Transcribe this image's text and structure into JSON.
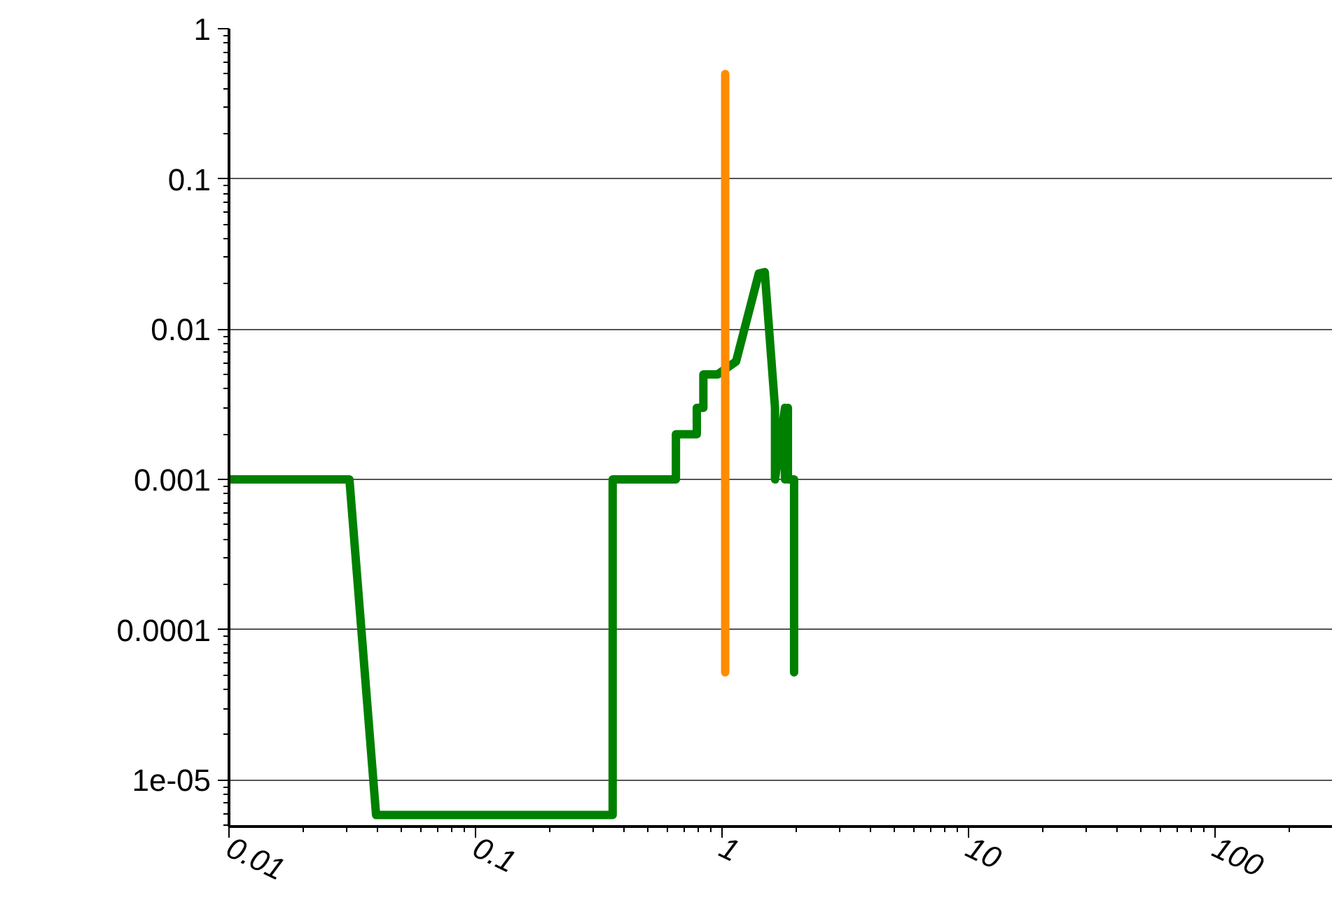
{
  "chart_data": {
    "type": "line",
    "log": "xy",
    "grid": "y",
    "marker": "none",
    "line_style": "solid",
    "xlim": [
      0.01,
      300
    ],
    "ylim": [
      4.9e-06,
      1
    ],
    "xticks": [
      0.01,
      0.1,
      1,
      10,
      100
    ],
    "yticks": [
      1,
      0.1,
      0.01,
      0.001,
      0.0001,
      {
        "value": 1e-05,
        "label": "1e-05"
      }
    ],
    "series": [
      {
        "color": "#008000",
        "x": [
          0.01,
          0.0308,
          0.0395,
          0.36,
          0.36,
          0.65,
          0.65,
          0.79,
          0.79,
          0.84,
          0.84,
          0.96,
          1.14,
          1.41,
          1.49,
          1.64,
          1.64,
          1.8,
          1.8,
          1.85,
          1.85,
          1.96,
          1.96
        ],
        "values": [
          0.001,
          0.001,
          5.85e-06,
          5.85e-06,
          0.001,
          0.001,
          0.002,
          0.002,
          0.003,
          0.003,
          0.005,
          0.005,
          0.0061,
          0.0235,
          0.024,
          0.003,
          0.001,
          0.003,
          0.001,
          0.003,
          0.001,
          0.001,
          5.2e-05
        ]
      },
      {
        "color": "#ff8c00",
        "x": [
          1.03,
          1.03
        ],
        "values": [
          0.5,
          5.2e-05
        ]
      }
    ]
  }
}
